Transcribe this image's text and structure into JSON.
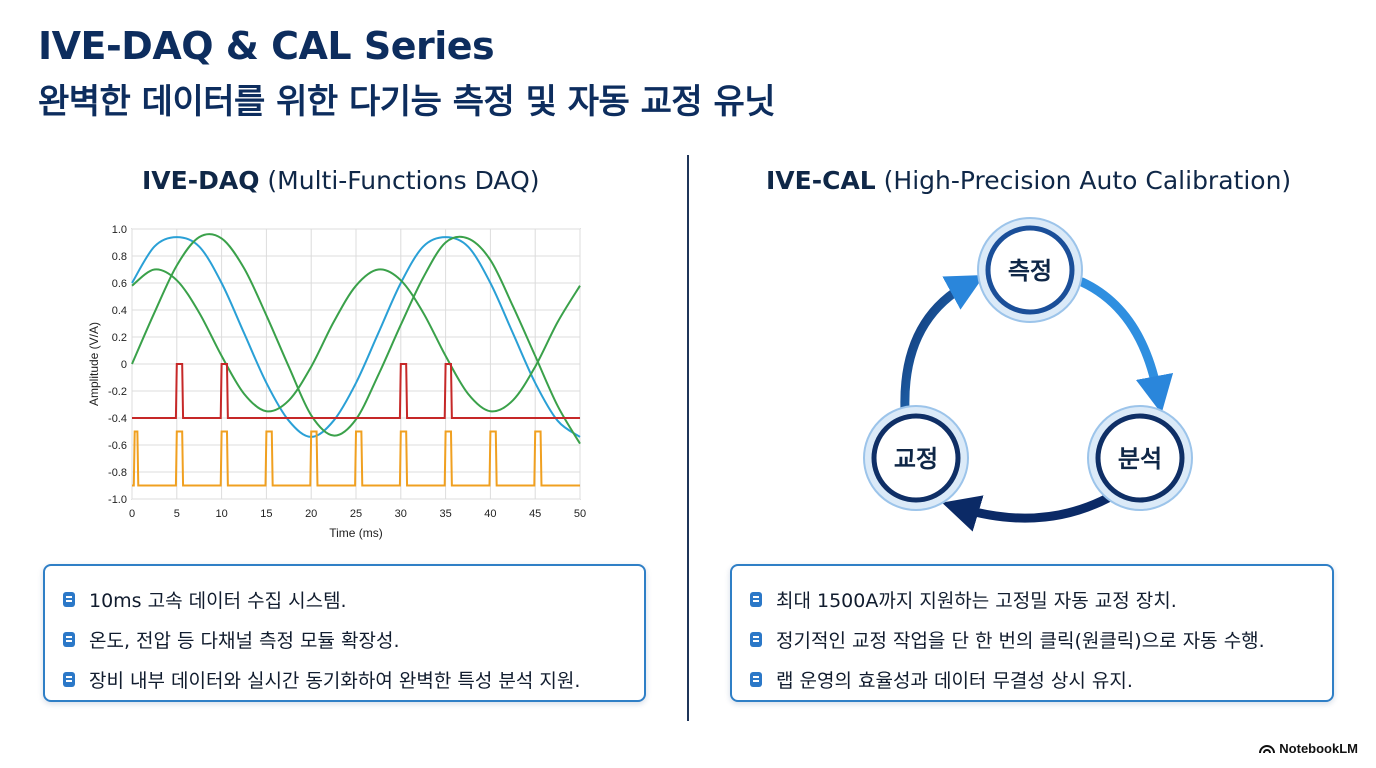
{
  "header": {
    "title": "IVE-DAQ & CAL Series",
    "subtitle": "완벽한 데이터를 위한 다기능 측정 및 자동 교정 유닛"
  },
  "left_panel": {
    "heading_bold": "IVE-DAQ",
    "heading_rest": " (Multi-Functions DAQ)",
    "bullets": [
      "10ms 고속 데이터 수집 시스템.",
      "온도, 전압 등 다채널 측정 모듈 확장성.",
      "장비 내부 데이터와 실시간 동기화하여 완벽한 특성 분석 지원."
    ]
  },
  "right_panel": {
    "heading_bold": "IVE-CAL",
    "heading_rest": " (High-Precision Auto Calibration)",
    "cycle_nodes": [
      "측정",
      "분석",
      "교정"
    ],
    "bullets": [
      "최대 1500A까지 지원하는 고정밀 자동 교정 장치.",
      "정기적인 교정 작업을 단 한 번의 클릭(원클릭)으로 자동 수행.",
      "랩 운영의 효율성과 데이터 무결성 상시 유지."
    ]
  },
  "colors": {
    "title": "#0d2d5e",
    "accent": "#2b78c8",
    "sine_blue": "#2aa0d6",
    "sine_green": "#3aa14a",
    "pulse_red": "#c62828",
    "pulse_orange": "#f0a020"
  },
  "chart_data": {
    "type": "line",
    "xlabel": "Time (ms)",
    "ylabel": "Amplitude (V/A)",
    "xlim": [
      0,
      50
    ],
    "ylim": [
      -1.0,
      1.0
    ],
    "x_ticks": [
      0,
      5,
      10,
      15,
      20,
      25,
      30,
      35,
      40,
      45,
      50
    ],
    "y_ticks": [
      1.0,
      0.8,
      0.6,
      0.4,
      0.2,
      0,
      -0.2,
      -0.4,
      -0.6,
      -0.8,
      -1.0
    ],
    "y_tick_labels": [
      "1.0",
      "0.8",
      "0.6",
      "0.4",
      "0.2",
      "0",
      "-0.2",
      "-0.4",
      "-0.6",
      "-0.8",
      "-1.0"
    ],
    "grid": true,
    "series": [
      {
        "color": "#2aa0d6",
        "x": [
          0,
          2.5,
          5,
          7.5,
          10,
          12.5,
          15,
          17.5,
          20,
          22.5,
          25,
          27.5,
          30,
          32.5,
          35,
          37.5,
          40,
          42.5,
          45,
          47.5,
          50
        ],
        "values": [
          0.6,
          0.87,
          0.94,
          0.87,
          0.6,
          0.23,
          -0.14,
          -0.42,
          -0.54,
          -0.42,
          -0.14,
          0.23,
          0.6,
          0.87,
          0.94,
          0.87,
          0.6,
          0.23,
          -0.14,
          -0.42,
          -0.54
        ]
      },
      {
        "color": "#3aa14a",
        "x": [
          0,
          2.5,
          5,
          7.5,
          10,
          12.5,
          15,
          17.5,
          20,
          22.5,
          25,
          27.5,
          30,
          32.5,
          35,
          37.5,
          40,
          42.5,
          45,
          47.5,
          50
        ],
        "values": [
          0.58,
          0.7,
          0.62,
          0.38,
          0.06,
          -0.22,
          -0.35,
          -0.27,
          -0.02,
          0.31,
          0.58,
          0.7,
          0.62,
          0.38,
          0.06,
          -0.22,
          -0.35,
          -0.27,
          -0.02,
          0.31,
          0.58
        ]
      },
      {
        "color": "#3aa14a",
        "x": [
          0,
          2.5,
          5,
          7.5,
          10,
          12.5,
          15,
          17.5,
          20,
          22.5,
          25,
          27.5,
          30,
          32.5,
          35,
          37.5,
          40,
          42.5,
          45,
          47.5,
          50
        ],
        "values": [
          0.0,
          0.38,
          0.73,
          0.94,
          0.93,
          0.71,
          0.36,
          -0.02,
          -0.38,
          -0.53,
          -0.41,
          -0.08,
          0.29,
          0.64,
          0.9,
          0.93,
          0.77,
          0.43,
          0.06,
          -0.31,
          -0.59
        ]
      },
      {
        "color": "#c62828",
        "x": [
          0,
          4.9,
          5,
          5.6,
          5.7,
          9.9,
          10,
          10.6,
          10.7,
          29.9,
          30,
          30.6,
          30.7,
          34.9,
          35,
          35.6,
          35.7,
          50
        ],
        "values": [
          -0.4,
          -0.4,
          0,
          0,
          -0.4,
          -0.4,
          0,
          0,
          -0.4,
          -0.4,
          0,
          0,
          -0.4,
          -0.4,
          0,
          0,
          -0.4,
          -0.4
        ]
      },
      {
        "color": "#f0a020",
        "x": [
          0,
          0.2,
          0.3,
          0.6,
          0.7,
          4.9,
          5,
          5.6,
          5.7,
          9.9,
          10,
          10.6,
          10.7,
          14.9,
          15,
          15.6,
          15.7,
          19.9,
          20,
          20.6,
          20.7,
          24.9,
          25,
          25.6,
          25.7,
          29.9,
          30,
          30.6,
          30.7,
          34.9,
          35,
          35.6,
          35.7,
          39.9,
          40,
          40.6,
          40.7,
          44.9,
          45,
          45.6,
          45.7,
          50
        ],
        "values": [
          -0.9,
          -0.9,
          -0.5,
          -0.5,
          -0.9,
          -0.9,
          -0.5,
          -0.5,
          -0.9,
          -0.9,
          -0.5,
          -0.5,
          -0.9,
          -0.9,
          -0.5,
          -0.5,
          -0.9,
          -0.9,
          -0.5,
          -0.5,
          -0.9,
          -0.9,
          -0.5,
          -0.5,
          -0.9,
          -0.9,
          -0.5,
          -0.5,
          -0.9,
          -0.9,
          -0.5,
          -0.5,
          -0.9,
          -0.9,
          -0.5,
          -0.5,
          -0.9,
          -0.9,
          -0.5,
          -0.5,
          -0.9,
          -0.9
        ]
      }
    ]
  },
  "brand": {
    "name": "NotebookLM",
    "icon": "notebooklm-icon"
  }
}
